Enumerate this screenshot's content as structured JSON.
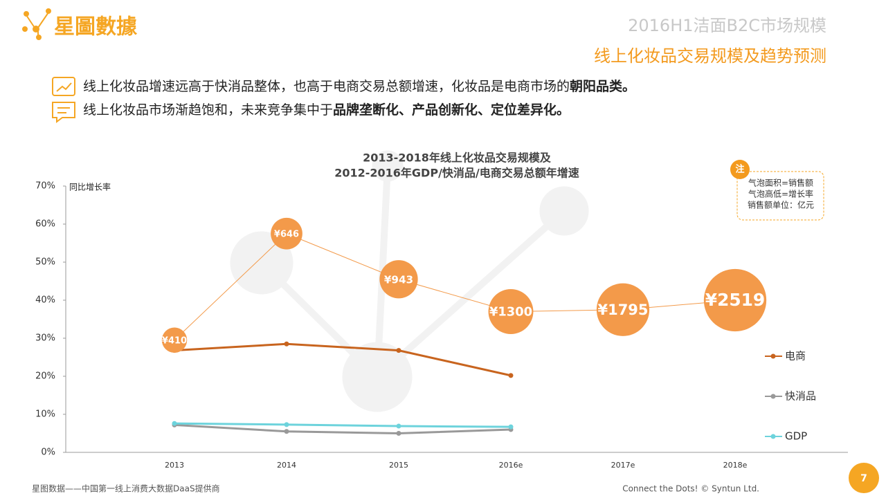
{
  "header": {
    "logo": "星圖數據",
    "title": "2016H1洁面B2C市场规模",
    "subtitle": "线上化妆品交易规模及趋势预测"
  },
  "bullets": [
    [
      "线上化妆品增速远高于快消品整体，也高于电商交易总额增速，化妆品是电商市场的",
      "朝阳品类。"
    ],
    [
      "线上化妆品市场渐趋饱和，未来竞争集中于",
      "品牌垄断化、产品创新化、定位差异化。"
    ]
  ],
  "chart_data": {
    "type": "line",
    "title": [
      "2013-2018年线上化妆品交易规模及",
      "2012-2016年GDP/快消品/电商交易总额年增速"
    ],
    "y_label": "同比增长率",
    "categories": [
      "2013",
      "2014",
      "2015",
      "2016e",
      "2017e",
      "2018e"
    ],
    "ylim": [
      0,
      70
    ],
    "yticks": [
      {
        "value": 0,
        "label": "0%"
      },
      {
        "value": 10,
        "label": "10%"
      },
      {
        "value": 20,
        "label": "20%"
      },
      {
        "value": 30,
        "label": "30%"
      },
      {
        "value": 40,
        "label": "40%"
      },
      {
        "value": 50,
        "label": "50%"
      },
      {
        "value": 60,
        "label": "60%"
      },
      {
        "value": 70,
        "label": "70%"
      }
    ],
    "series": [
      {
        "name": "电商",
        "color": "#c8641e",
        "values": [
          26.8,
          28.5,
          26.8,
          20.2,
          null,
          null
        ]
      },
      {
        "name": "快消品",
        "color": "#999999",
        "values": [
          7.2,
          5.5,
          5.0,
          6.0,
          null,
          null
        ]
      },
      {
        "name": "GDP",
        "color": "#6dd3dc",
        "values": [
          7.6,
          7.3,
          6.9,
          6.7,
          null,
          null
        ]
      }
    ],
    "bubbles": {
      "color": "#f39a4a",
      "values": [
        29.5,
        57.5,
        45.5,
        37,
        37.5,
        40
      ],
      "sizes": [
        410,
        646,
        943,
        1300,
        1795,
        2519
      ],
      "value_labels": [
        "¥410",
        "¥646",
        "¥943",
        "¥1300",
        "¥1795",
        "¥2519"
      ]
    },
    "note": {
      "marker": "注",
      "lines": [
        "气泡面积=销售额",
        "气泡高低=增长率",
        "销售额单位：亿元"
      ]
    }
  },
  "footer": {
    "left": "星图数据——中国第一线上消费大数据DaaS提供商",
    "right": "Connect the Dots!  © Syntun Ltd.",
    "page": "7"
  }
}
